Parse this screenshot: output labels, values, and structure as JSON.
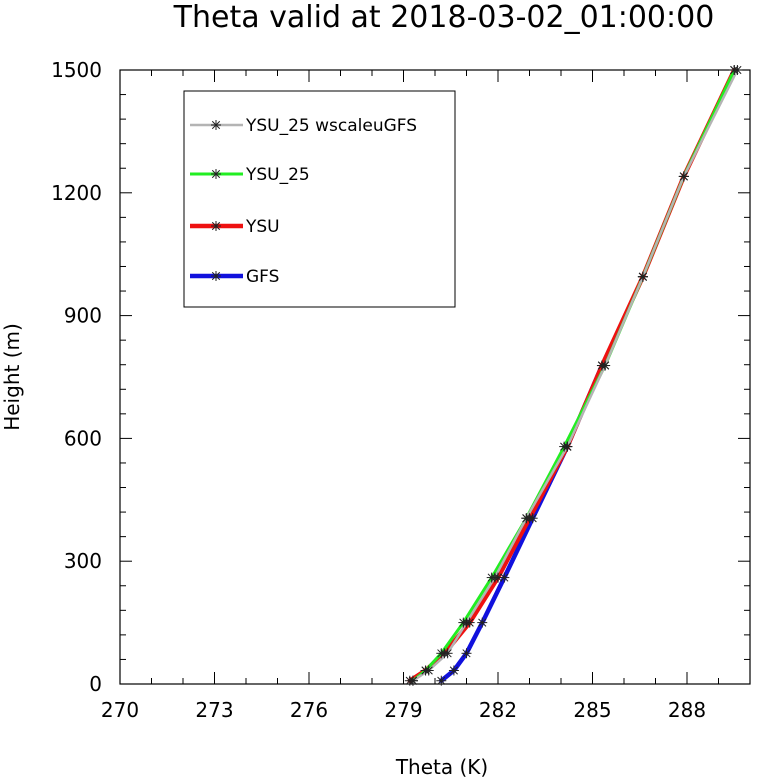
{
  "chart_data": {
    "type": "line",
    "title": "Theta valid at 2018-03-02_01:00:00",
    "xlabel": "Theta (K)",
    "ylabel": "Height (m)",
    "xlim": [
      270,
      290
    ],
    "ylim": [
      0,
      1500
    ],
    "x_ticks": [
      270,
      273,
      276,
      279,
      282,
      285,
      288
    ],
    "x_tick_labels": [
      "270",
      "273",
      "276",
      "279",
      "282",
      "285",
      "288"
    ],
    "y_ticks": [
      0,
      300,
      600,
      900,
      1200,
      1500
    ],
    "y_tick_labels": [
      "0",
      "300",
      "600",
      "900",
      "1200",
      "1500"
    ],
    "legend_position": "top-left",
    "series": [
      {
        "name": "YSU_25 wscaleuGFS",
        "color": "#b4b4b4",
        "marker": "asterisk",
        "points": [
          [
            279.3,
            8
          ],
          [
            279.8,
            33
          ],
          [
            280.4,
            75
          ],
          [
            281.0,
            150
          ],
          [
            281.9,
            260
          ],
          [
            282.9,
            405
          ],
          [
            284.2,
            580
          ],
          [
            285.4,
            778
          ],
          [
            286.6,
            995
          ],
          [
            287.9,
            1240
          ],
          [
            289.6,
            1500
          ]
        ]
      },
      {
        "name": "YSU_25",
        "color": "#22ee22",
        "marker": "asterisk",
        "points": [
          [
            279.3,
            8
          ],
          [
            279.7,
            33
          ],
          [
            280.2,
            75
          ],
          [
            280.9,
            150
          ],
          [
            281.8,
            260
          ],
          [
            282.9,
            405
          ],
          [
            284.1,
            580
          ],
          [
            285.4,
            778
          ],
          [
            286.6,
            995
          ],
          [
            287.9,
            1240
          ],
          [
            289.5,
            1500
          ]
        ]
      },
      {
        "name": "YSU",
        "color": "#ee1111",
        "marker": "asterisk",
        "points": [
          [
            279.2,
            8
          ],
          [
            279.7,
            33
          ],
          [
            280.3,
            75
          ],
          [
            281.1,
            150
          ],
          [
            282.0,
            260
          ],
          [
            283.0,
            405
          ],
          [
            284.2,
            580
          ],
          [
            285.3,
            778
          ],
          [
            286.6,
            995
          ],
          [
            287.9,
            1240
          ],
          [
            289.5,
            1500
          ]
        ]
      },
      {
        "name": "GFS",
        "color": "#1111dd",
        "marker": "asterisk",
        "points": [
          [
            280.2,
            8
          ],
          [
            280.6,
            33
          ],
          [
            281.0,
            75
          ],
          [
            281.5,
            150
          ],
          [
            282.2,
            260
          ],
          [
            283.1,
            405
          ],
          [
            284.2,
            580
          ],
          [
            285.3,
            778
          ]
        ]
      }
    ]
  }
}
